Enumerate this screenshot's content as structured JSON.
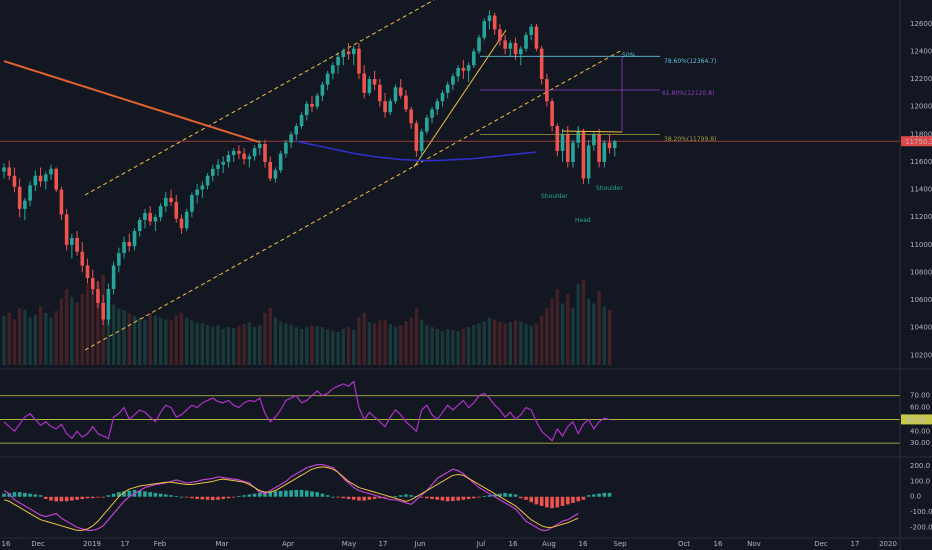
{
  "chart_data": {
    "type": "candlestick",
    "title": "",
    "colors": {
      "background": "#131722",
      "up": "#26a69a",
      "down": "#ef5350",
      "ma200": "#e0622f",
      "ma50": "#2f2fc8",
      "channel": "#f0c040",
      "rsi": "#b030c8",
      "rsi_band": "#c8c84a",
      "macd": "#c040d0",
      "macd_signal": "#f0c040",
      "last_price": "#e04848",
      "fib_786": "#60c0d8",
      "fib_618": "#9040c0",
      "fib_382": "#a0a040"
    },
    "xaxis": {
      "labels": [
        "16",
        "Dec",
        "2019",
        "17",
        "Feb",
        "Mar",
        "Apr",
        "May",
        "17",
        "Jun",
        "Jul",
        "16",
        "Aug",
        "16",
        "Sep",
        "Oct",
        "16",
        "Nov",
        "Dec",
        "17",
        "2020"
      ]
    },
    "price_axis": {
      "ticks": [
        "12600.0",
        "12400.0",
        "12200.0",
        "12000.0",
        "11800.0",
        "11600.0",
        "11400.0",
        "11200.0",
        "11000.0",
        "10800.0",
        "10600.0",
        "10400.0",
        "10200.0"
      ],
      "range": [
        10130,
        12700
      ],
      "last_price": 11750,
      "last_price_label": "11750.3"
    },
    "price_series": [
      [
        11530,
        11590,
        11480,
        11560
      ],
      [
        11560,
        11610,
        11470,
        11500
      ],
      [
        11500,
        11560,
        11380,
        11420
      ],
      [
        11420,
        11480,
        11200,
        11260
      ],
      [
        11260,
        11340,
        11180,
        11320
      ],
      [
        11320,
        11460,
        11280,
        11430
      ],
      [
        11430,
        11540,
        11390,
        11500
      ],
      [
        11500,
        11560,
        11420,
        11460
      ],
      [
        11460,
        11530,
        11400,
        11510
      ],
      [
        11510,
        11580,
        11470,
        11550
      ],
      [
        11550,
        11560,
        11380,
        11400
      ],
      [
        11400,
        11420,
        11180,
        11220
      ],
      [
        11220,
        11260,
        10960,
        11000
      ],
      [
        11000,
        11080,
        10900,
        11050
      ],
      [
        11050,
        11100,
        10920,
        10950
      ],
      [
        10950,
        11020,
        10800,
        10850
      ],
      [
        10850,
        10900,
        10720,
        10760
      ],
      [
        10760,
        10820,
        10640,
        10680
      ],
      [
        10680,
        10740,
        10540,
        10580
      ],
      [
        10580,
        10640,
        10420,
        10460
      ],
      [
        10460,
        10720,
        10420,
        10680
      ],
      [
        10680,
        10880,
        10640,
        10850
      ],
      [
        10850,
        10980,
        10800,
        10940
      ],
      [
        10940,
        11060,
        10900,
        11020
      ],
      [
        11020,
        11080,
        10950,
        10990
      ],
      [
        10990,
        11120,
        10960,
        11100
      ],
      [
        11100,
        11200,
        11060,
        11180
      ],
      [
        11180,
        11260,
        11120,
        11230
      ],
      [
        11230,
        11280,
        11140,
        11170
      ],
      [
        11170,
        11220,
        11100,
        11200
      ],
      [
        11200,
        11300,
        11170,
        11280
      ],
      [
        11280,
        11380,
        11240,
        11340
      ],
      [
        11340,
        11400,
        11280,
        11310
      ],
      [
        11310,
        11360,
        11160,
        11190
      ],
      [
        11190,
        11220,
        11080,
        11120
      ],
      [
        11120,
        11260,
        11100,
        11240
      ],
      [
        11240,
        11380,
        11200,
        11360
      ],
      [
        11360,
        11440,
        11300,
        11400
      ],
      [
        11400,
        11460,
        11340,
        11430
      ],
      [
        11430,
        11520,
        11400,
        11500
      ],
      [
        11500,
        11580,
        11460,
        11550
      ],
      [
        11550,
        11620,
        11500,
        11580
      ],
      [
        11580,
        11640,
        11520,
        11600
      ],
      [
        11600,
        11680,
        11560,
        11650
      ],
      [
        11650,
        11700,
        11600,
        11680
      ],
      [
        11680,
        11720,
        11620,
        11660
      ],
      [
        11660,
        11700,
        11580,
        11620
      ],
      [
        11620,
        11660,
        11560,
        11640
      ],
      [
        11640,
        11720,
        11610,
        11700
      ],
      [
        11700,
        11760,
        11650,
        11730
      ],
      [
        11730,
        11760,
        11560,
        11600
      ],
      [
        11600,
        11640,
        11460,
        11480
      ],
      [
        11480,
        11560,
        11450,
        11540
      ],
      [
        11540,
        11680,
        11520,
        11660
      ],
      [
        11660,
        11760,
        11630,
        11740
      ],
      [
        11740,
        11820,
        11700,
        11800
      ],
      [
        11800,
        11880,
        11760,
        11860
      ],
      [
        11860,
        11960,
        11840,
        11940
      ],
      [
        11940,
        12040,
        11900,
        12020
      ],
      [
        12020,
        12080,
        11960,
        12000
      ],
      [
        12000,
        12100,
        11980,
        12080
      ],
      [
        12080,
        12180,
        12040,
        12160
      ],
      [
        12160,
        12260,
        12120,
        12240
      ],
      [
        12240,
        12320,
        12200,
        12300
      ],
      [
        12300,
        12380,
        12240,
        12360
      ],
      [
        12360,
        12420,
        12300,
        12400
      ],
      [
        12400,
        12460,
        12340,
        12380
      ],
      [
        12380,
        12440,
        12300,
        12420
      ],
      [
        12420,
        12460,
        12200,
        12240
      ],
      [
        12240,
        12300,
        12060,
        12100
      ],
      [
        12100,
        12220,
        12080,
        12200
      ],
      [
        12200,
        12260,
        12120,
        12160
      ],
      [
        12160,
        12200,
        12000,
        12040
      ],
      [
        12040,
        12100,
        11920,
        11960
      ],
      [
        11960,
        12060,
        11940,
        12040
      ],
      [
        12040,
        12160,
        12020,
        12140
      ],
      [
        12140,
        12200,
        12060,
        12080
      ],
      [
        12080,
        12120,
        11960,
        11980
      ],
      [
        11980,
        12000,
        11840,
        11880
      ],
      [
        11880,
        11900,
        11640,
        11680
      ],
      [
        11680,
        11840,
        11640,
        11820
      ],
      [
        11820,
        11940,
        11800,
        11920
      ],
      [
        11920,
        12000,
        11880,
        11980
      ],
      [
        11980,
        12060,
        11940,
        12040
      ],
      [
        12040,
        12120,
        12000,
        12100
      ],
      [
        12100,
        12180,
        12060,
        12160
      ],
      [
        12160,
        12240,
        12120,
        12220
      ],
      [
        12220,
        12300,
        12180,
        12280
      ],
      [
        12280,
        12340,
        12200,
        12260
      ],
      [
        12260,
        12320,
        12180,
        12300
      ],
      [
        12300,
        12420,
        12280,
        12400
      ],
      [
        12400,
        12520,
        12380,
        12500
      ],
      [
        12500,
        12640,
        12480,
        12620
      ],
      [
        12620,
        12700,
        12560,
        12660
      ],
      [
        12660,
        12680,
        12520,
        12560
      ],
      [
        12560,
        12600,
        12440,
        12480
      ],
      [
        12480,
        12520,
        12380,
        12420
      ],
      [
        12420,
        12480,
        12360,
        12460
      ],
      [
        12460,
        12500,
        12340,
        12380
      ],
      [
        12380,
        12440,
        12300,
        12420
      ],
      [
        12420,
        12540,
        12400,
        12520
      ],
      [
        12520,
        12600,
        12480,
        12580
      ],
      [
        12580,
        12600,
        12400,
        12420
      ],
      [
        12420,
        12440,
        12160,
        12200
      ],
      [
        12200,
        12240,
        12000,
        12040
      ],
      [
        12040,
        12060,
        11820,
        11860
      ],
      [
        11860,
        11880,
        11640,
        11680
      ],
      [
        11680,
        11840,
        11600,
        11800
      ],
      [
        11800,
        11860,
        11560,
        11600
      ],
      [
        11600,
        11760,
        11560,
        11740
      ],
      [
        11740,
        11860,
        11700,
        11820
      ],
      [
        11820,
        11840,
        11440,
        11480
      ],
      [
        11480,
        11760,
        11440,
        11720
      ],
      [
        11720,
        11820,
        11680,
        11800
      ],
      [
        11800,
        11840,
        11560,
        11600
      ],
      [
        11600,
        11760,
        11560,
        11740
      ],
      [
        11740,
        11800,
        11660,
        11700
      ],
      [
        11700,
        11760,
        11640,
        11750
      ]
    ],
    "volume_series": [
      52,
      55,
      48,
      60,
      58,
      50,
      53,
      62,
      55,
      50,
      57,
      70,
      80,
      72,
      66,
      75,
      85,
      90,
      88,
      95,
      70,
      64,
      60,
      58,
      55,
      52,
      50,
      48,
      55,
      52,
      50,
      48,
      47,
      52,
      55,
      50,
      47,
      45,
      44,
      42,
      40,
      42,
      38,
      40,
      39,
      41,
      43,
      45,
      40,
      42,
      55,
      60,
      50,
      46,
      44,
      42,
      40,
      38,
      40,
      42,
      41,
      40,
      38,
      36,
      35,
      38,
      40,
      37,
      50,
      55,
      45,
      44,
      47,
      48,
      43,
      40,
      42,
      46,
      50,
      60,
      48,
      42,
      40,
      38,
      36,
      38,
      37,
      36,
      38,
      40,
      42,
      44,
      46,
      50,
      48,
      46,
      44,
      45,
      47,
      46,
      43,
      41,
      44,
      52,
      60,
      70,
      80,
      65,
      75,
      60,
      85,
      90,
      70,
      65,
      78,
      62,
      58
    ],
    "ma200": [
      12330,
      12318,
      12306,
      12294,
      12282,
      12270,
      12258,
      12246,
      12234,
      12222,
      12210,
      12198,
      12186,
      12174,
      12162,
      12150,
      12138,
      12126,
      12114,
      12102,
      12090,
      12078,
      12066,
      12054,
      12042,
      12030,
      12018,
      12006,
      11994,
      11982,
      11970,
      11958,
      11946,
      11934,
      11922,
      11910,
      11898,
      11886,
      11874,
      11862,
      11850,
      11838,
      11826,
      11814,
      11802,
      11790,
      11778,
      11766,
      11754,
      11742
    ],
    "ma50": [
      11750,
      11742,
      11734,
      11726,
      11718,
      11710,
      11702,
      11694,
      11686,
      11678,
      11670,
      11662,
      11656,
      11650,
      11644,
      11638,
      11634,
      11630,
      11626,
      11622,
      11618,
      11616,
      11614,
      11612,
      11611,
      11610,
      11610,
      11611,
      11612,
      11614,
      11616,
      11618,
      11620,
      11622,
      11624,
      11628,
      11632,
      11636,
      11640,
      11644,
      11648,
      11652,
      11656,
      11660,
      11664,
      11668,
      11672
    ],
    "channel": {
      "upper": [
        [
          85,
          195
        ],
        [
          434,
          0
        ]
      ],
      "lower": [
        [
          85,
          350
        ],
        [
          622,
          50
        ]
      ],
      "wedge": [
        [
          414,
          167
        ],
        [
          506,
          30
        ]
      ]
    },
    "neckline": [
      [
        562,
        131
      ],
      [
        622,
        132
      ]
    ],
    "fibonacci": [
      {
        "label": "78.60%(12364.7)",
        "price": 12364.7,
        "color": "#60c0d8"
      },
      {
        "label": "61.80%(12120.8)",
        "price": 12120.8,
        "color": "#9040c0"
      },
      {
        "label": "38.20%(11799.8)",
        "price": 11799.8,
        "color": "#a0a040"
      }
    ],
    "target_label": "50%",
    "pattern_labels": [
      "Shoulder",
      "Head",
      "Shoulder"
    ],
    "rsi": {
      "ticks": [
        "70.00",
        "60.00",
        "40.00",
        "30.00"
      ],
      "band_levels": [
        70,
        30
      ],
      "mid_level": 50,
      "current_label": "50.60",
      "values": [
        48,
        44,
        40,
        46,
        52,
        55,
        50,
        45,
        48,
        44,
        42,
        46,
        38,
        34,
        40,
        35,
        38,
        44,
        38,
        36,
        34,
        52,
        55,
        60,
        50,
        54,
        58,
        56,
        52,
        48,
        56,
        62,
        60,
        52,
        54,
        58,
        62,
        60,
        64,
        66,
        68,
        65,
        64,
        66,
        62,
        60,
        64,
        66,
        65,
        68,
        55,
        48,
        52,
        58,
        66,
        68,
        70,
        64,
        66,
        70,
        74,
        70,
        72,
        76,
        78,
        80,
        78,
        82,
        60,
        50,
        56,
        52,
        48,
        44,
        52,
        58,
        54,
        48,
        44,
        40,
        58,
        62,
        54,
        50,
        56,
        62,
        58,
        62,
        66,
        60,
        64,
        70,
        72,
        68,
        62,
        58,
        52,
        56,
        50,
        54,
        60,
        58,
        48,
        40,
        36,
        32,
        42,
        36,
        44,
        48,
        38,
        46,
        50,
        42,
        48,
        51,
        50
      ]
    },
    "macd": {
      "ticks": [
        "200.0",
        "100.0",
        "0.0",
        "-100.0",
        "-200.0"
      ],
      "range": [
        -250,
        240
      ],
      "macd_line": [
        40,
        20,
        -20,
        -40,
        -60,
        -80,
        -100,
        -120,
        -130,
        -120,
        -110,
        -140,
        -160,
        -180,
        -200,
        -210,
        -220,
        -220,
        -210,
        -190,
        -150,
        -110,
        -70,
        -30,
        0,
        20,
        40,
        60,
        70,
        80,
        85,
        90,
        100,
        110,
        100,
        90,
        95,
        100,
        110,
        115,
        120,
        130,
        125,
        120,
        115,
        110,
        100,
        90,
        60,
        30,
        20,
        40,
        60,
        80,
        100,
        130,
        150,
        170,
        190,
        200,
        210,
        210,
        200,
        190,
        160,
        120,
        90,
        60,
        40,
        30,
        20,
        10,
        0,
        -10,
        -20,
        -20,
        -30,
        -40,
        -50,
        -20,
        10,
        40,
        80,
        120,
        140,
        160,
        180,
        170,
        150,
        120,
        90,
        60,
        40,
        20,
        0,
        -20,
        -40,
        -60,
        -80,
        -120,
        -160,
        -180,
        -200,
        -220,
        -220,
        -200,
        -180,
        -160,
        -150,
        -130,
        -110
      ],
      "signal_line": [
        -20,
        -30,
        -50,
        -70,
        -90,
        -110,
        -130,
        -150,
        -160,
        -170,
        -180,
        -190,
        -200,
        -210,
        -220,
        -220,
        -210,
        -190,
        -160,
        -120,
        -80,
        -40,
        0,
        30,
        50,
        60,
        70,
        75,
        80,
        85,
        90,
        95,
        95,
        90,
        85,
        80,
        80,
        85,
        90,
        95,
        100,
        110,
        115,
        110,
        105,
        100,
        95,
        80,
        60,
        40,
        30,
        30,
        40,
        60,
        80,
        100,
        120,
        140,
        160,
        180,
        190,
        195,
        190,
        180,
        160,
        130,
        100,
        80,
        60,
        50,
        40,
        30,
        20,
        10,
        0,
        -10,
        -20,
        -30,
        -20,
        0,
        20,
        40,
        60,
        80,
        100,
        120,
        140,
        145,
        140,
        120,
        100,
        80,
        60,
        40,
        20,
        0,
        -20,
        -40,
        -60,
        -90,
        -120,
        -150,
        -170,
        -190,
        -200,
        -200,
        -190,
        -180,
        -170,
        -155,
        -140
      ],
      "histogram": [
        20,
        25,
        30,
        30,
        25,
        20,
        15,
        10,
        -15,
        -25,
        -30,
        -30,
        -30,
        -25,
        -20,
        -15,
        -10,
        -8,
        -5,
        -5,
        10,
        20,
        30,
        35,
        40,
        45,
        40,
        35,
        30,
        25,
        20,
        15,
        10,
        5,
        0,
        -5,
        -10,
        -15,
        -18,
        -20,
        -22,
        -20,
        -15,
        -10,
        -5,
        5,
        10,
        15,
        20,
        25,
        30,
        32,
        35,
        38,
        40,
        42,
        44,
        45,
        40,
        35,
        30,
        20,
        10,
        0,
        -5,
        -10,
        -15,
        -20,
        -25,
        -25,
        -20,
        -15,
        -10,
        -5,
        0,
        5,
        10,
        15,
        10,
        5,
        -5,
        -10,
        -15,
        -20,
        -25,
        -30,
        -28,
        -25,
        -20,
        -15,
        -10,
        -5,
        5,
        10,
        15,
        20,
        25,
        20,
        15,
        -10,
        -20,
        -35,
        -50,
        -60,
        -70,
        -75,
        -70,
        -60,
        -50,
        -40,
        -30,
        -20,
        10,
        15,
        20,
        25,
        25
      ]
    }
  }
}
